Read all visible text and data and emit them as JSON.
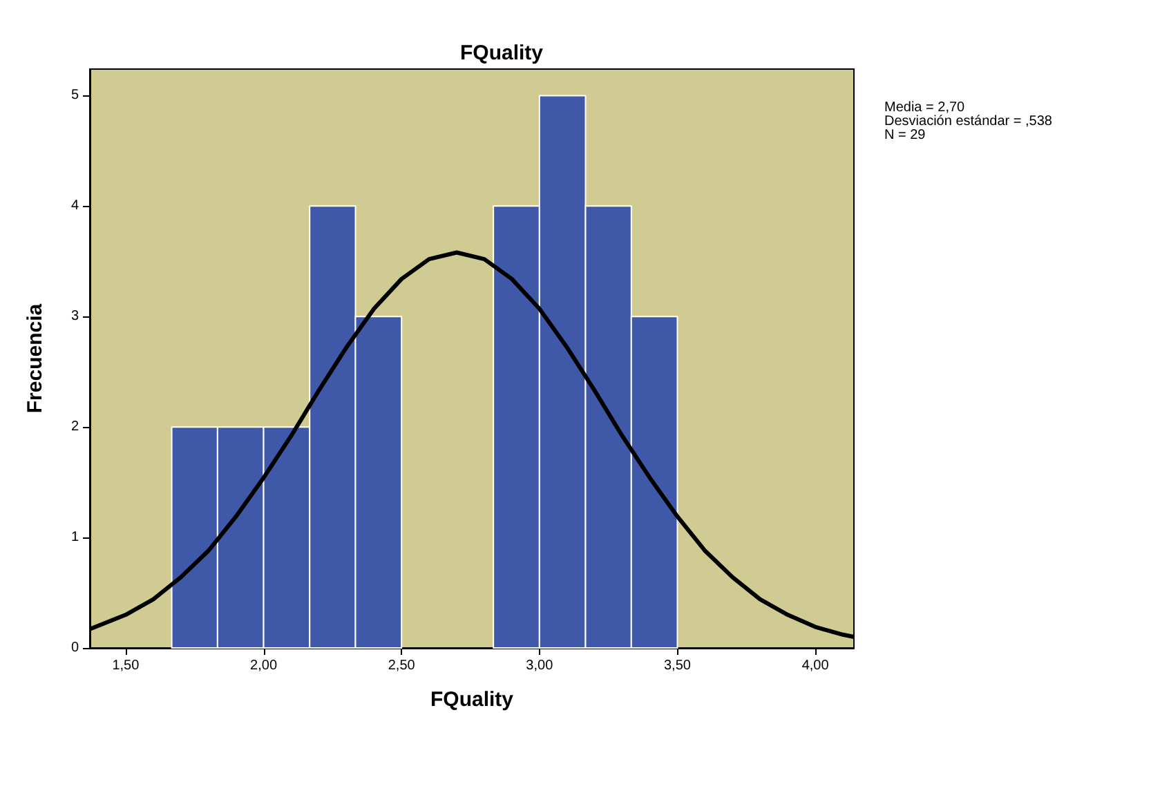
{
  "chart_data": {
    "type": "histogram",
    "title": "FQuality",
    "xlabel": "FQuality",
    "ylabel": "Frecuencia",
    "bins": [
      1.667,
      1.833,
      2.0,
      2.167,
      2.333,
      2.5,
      2.667,
      2.833,
      3.0,
      3.167,
      3.333,
      3.5
    ],
    "values": [
      2,
      2,
      2,
      4,
      3,
      0,
      0,
      4,
      5,
      4,
      3
    ],
    "color": "#4058a8",
    "series": [
      {
        "type": "line",
        "color": "#000000",
        "x": [
          1.37,
          1.5,
          1.6,
          1.7,
          1.8,
          1.9,
          2.0,
          2.1,
          2.2,
          2.3,
          2.4,
          2.5,
          2.6,
          2.7,
          2.8,
          2.9,
          3.0,
          3.1,
          3.2,
          3.3,
          3.4,
          3.5,
          3.6,
          3.7,
          3.8,
          3.9,
          4.0,
          4.1,
          4.14
        ],
        "values": [
          0.17,
          0.3,
          0.44,
          0.64,
          0.88,
          1.19,
          1.54,
          1.92,
          2.33,
          2.72,
          3.07,
          3.34,
          3.52,
          3.58,
          3.52,
          3.34,
          3.07,
          2.72,
          2.33,
          1.92,
          1.54,
          1.19,
          0.88,
          0.64,
          0.44,
          0.3,
          0.19,
          0.12,
          0.1
        ]
      }
    ],
    "xlim": [
      1.37,
      4.14
    ],
    "xticks": [
      {
        "value": 1.5,
        "label": "1,50"
      },
      {
        "value": 2.0,
        "label": "2,00"
      },
      {
        "value": 2.5,
        "label": "2,50"
      },
      {
        "value": 3.0,
        "label": "3,00"
      },
      {
        "value": 3.5,
        "label": "3,50"
      },
      {
        "value": 4.0,
        "label": "4,00"
      }
    ],
    "ylim": [
      0,
      5.24
    ],
    "yticks": [
      0,
      1,
      2,
      3,
      4,
      5
    ],
    "annotations": [
      "Media = 2,70",
      "Desviación estándar = ,538",
      "N = 29"
    ],
    "grid": false,
    "marker": "none",
    "line_style": "solid"
  }
}
